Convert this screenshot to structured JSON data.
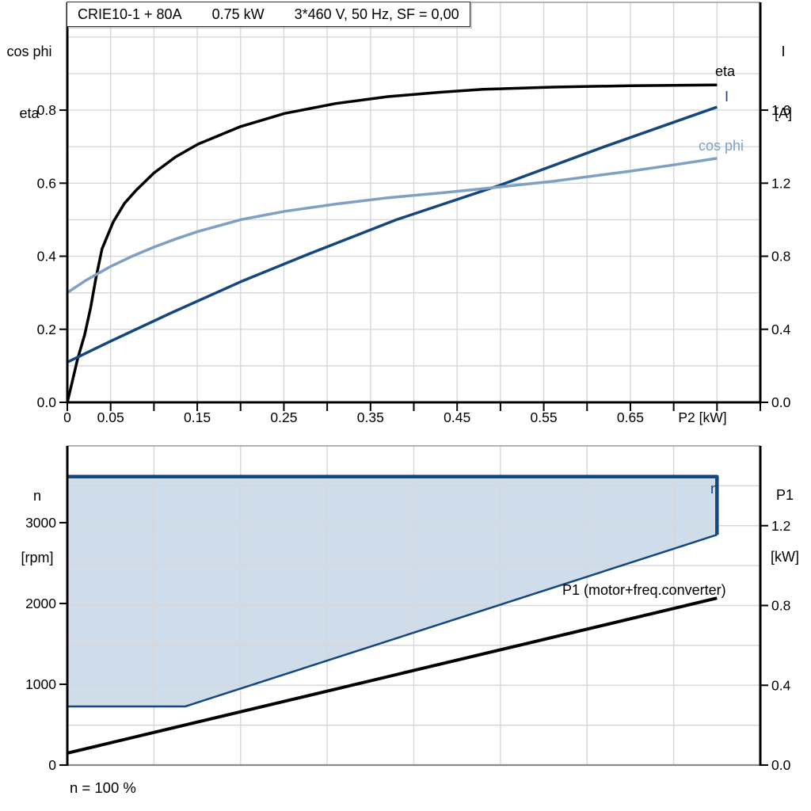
{
  "title_box": {
    "segments": [
      "CRIE10-1 + 80A",
      "0.75 kW",
      "3*460 V, 50 Hz, SF = 0,00"
    ]
  },
  "axis_corner_labels": {
    "top_left_line1": "cos phi",
    "top_left_line2": "eta",
    "top_right_line1": "I",
    "top_right_line2": "[A]",
    "bottom_left_line1": "n",
    "bottom_left_line2": "[rpm]",
    "bottom_right_line1": "P1",
    "bottom_right_line2": "[kW]"
  },
  "footnote": "n = 100 %",
  "colors": {
    "eta_black": "#000000",
    "current_dark_blue": "#14477E",
    "cos_phi_light_blue": "#7FA0C2",
    "region_fill": "#CFDCE9",
    "gridline_gray": "#D5D7DA",
    "border_gray": "#9B9B9B",
    "bottom_axis_gray": "#8A8A8A",
    "axis_black": "#000000",
    "background": "#FFFFFF"
  },
  "chart_data": [
    {
      "type": "line",
      "title": "CRIE10-1 + 80A  0.75 kW  3*460 V, 50 Hz, SF = 0,00",
      "x_axis": {
        "label": "P2 [kW]",
        "min": 0,
        "max": 0.8,
        "minor_tick_step": 0.05,
        "tick_values": [
          0,
          0.05,
          0.15,
          0.25,
          0.35,
          0.45,
          0.55,
          0.65
        ],
        "tick_labels": [
          "0",
          "0.05",
          "0.15",
          "0.25",
          "0.35",
          "0.45",
          "0.55",
          "0.65"
        ],
        "grid_step": 0.05
      },
      "y_left": {
        "label": "cos phi / eta",
        "min": 0,
        "max": 1.095,
        "tick_values": [
          0.0,
          0.2,
          0.4,
          0.6,
          0.8
        ],
        "tick_labels": [
          "0.0",
          "0.2",
          "0.4",
          "0.6",
          "0.8"
        ],
        "grid_step": 0.1
      },
      "y_right": {
        "label": "I [A]",
        "min": 0,
        "max": 2.19,
        "tick_values": [
          0.0,
          0.4,
          0.8,
          1.2,
          1.6
        ],
        "tick_labels": [
          "0.0",
          "0.4",
          "0.8",
          "1.2",
          "1.6"
        ]
      },
      "series": [
        {
          "name": "eta",
          "label": "eta",
          "axis": "left",
          "color": "#000000",
          "width": 3.5,
          "points": [
            [
              0,
              0
            ],
            [
              0.006,
              0.06
            ],
            [
              0.012,
              0.12
            ],
            [
              0.02,
              0.185
            ],
            [
              0.027,
              0.26
            ],
            [
              0.033,
              0.34
            ],
            [
              0.04,
              0.42
            ],
            [
              0.053,
              0.494
            ],
            [
              0.066,
              0.545
            ],
            [
              0.08,
              0.582
            ],
            [
              0.1,
              0.628
            ],
            [
              0.125,
              0.672
            ],
            [
              0.151,
              0.707
            ],
            [
              0.2,
              0.755
            ],
            [
              0.251,
              0.791
            ],
            [
              0.31,
              0.818
            ],
            [
              0.37,
              0.837
            ],
            [
              0.43,
              0.849
            ],
            [
              0.48,
              0.857
            ],
            [
              0.56,
              0.863
            ],
            [
              0.65,
              0.867
            ],
            [
              0.75,
              0.869
            ]
          ]
        },
        {
          "name": "I",
          "label": "I",
          "axis": "right",
          "color": "#14477E",
          "width": 3.5,
          "points": [
            [
              0,
              0.22
            ],
            [
              0.05,
              0.335
            ],
            [
              0.12,
              0.49
            ],
            [
              0.2,
              0.66
            ],
            [
              0.28,
              0.815
            ],
            [
              0.38,
              1.0
            ],
            [
              0.5,
              1.19
            ],
            [
              0.62,
              1.4
            ],
            [
              0.75,
              1.617
            ]
          ]
        },
        {
          "name": "cos phi",
          "label": "cos phi",
          "axis": "left",
          "color": "#7FA0C2",
          "width": 3.5,
          "points": [
            [
              0,
              0.3
            ],
            [
              0.02,
              0.332
            ],
            [
              0.05,
              0.372
            ],
            [
              0.075,
              0.4
            ],
            [
              0.1,
              0.425
            ],
            [
              0.125,
              0.447
            ],
            [
              0.151,
              0.468
            ],
            [
              0.2,
              0.5
            ],
            [
              0.251,
              0.523
            ],
            [
              0.31,
              0.543
            ],
            [
              0.37,
              0.56
            ],
            [
              0.43,
              0.573
            ],
            [
              0.48,
              0.585
            ],
            [
              0.56,
              0.605
            ],
            [
              0.65,
              0.633
            ],
            [
              0.7,
              0.65
            ],
            [
              0.75,
              0.668
            ]
          ]
        }
      ]
    },
    {
      "type": "line",
      "x_axis": {
        "min": 0,
        "max": 0.8,
        "grid_divisions": 8
      },
      "y_left": {
        "label": "n [rpm]",
        "min": 0,
        "max": 3950,
        "tick_values": [
          0,
          1000,
          2000,
          3000
        ],
        "tick_labels": [
          "0",
          "1000",
          "2000",
          "3000"
        ]
      },
      "y_right": {
        "label": "P1 [kW]",
        "min": 0,
        "max": 1.6,
        "tick_values": [
          0.0,
          0.4,
          0.8,
          1.2
        ],
        "tick_labels": [
          "0.0",
          "0.4",
          "0.8",
          "1.2"
        ],
        "grid_step": 0.2
      },
      "region": {
        "name": "speed-operating-range",
        "fill": "#CFDCE9",
        "upper_rpm": [
          [
            0,
            3570
          ],
          [
            0.75,
            3570
          ],
          [
            0.75,
            2850
          ]
        ],
        "lower_rpm": [
          [
            0,
            725
          ],
          [
            0.136,
            725
          ],
          [
            0.75,
            2850
          ]
        ]
      },
      "series": [
        {
          "name": "n-max",
          "label": "n",
          "axis": "left",
          "color": "#14477E",
          "width": 4.5,
          "points": [
            [
              0,
              3570
            ],
            [
              0.75,
              3570
            ],
            [
              0.75,
              2850
            ]
          ]
        },
        {
          "name": "n-min",
          "label": "",
          "axis": "left",
          "color": "#14477E",
          "width": 2.5,
          "points": [
            [
              0,
              725
            ],
            [
              0.136,
              725
            ],
            [
              0.75,
              2850
            ]
          ]
        },
        {
          "name": "P1",
          "label": "P1 (motor+freq.converter)",
          "axis": "right",
          "color": "#000000",
          "width": 4,
          "points": [
            [
              0,
              0.06
            ],
            [
              0.75,
              0.837
            ]
          ]
        }
      ],
      "footnote": "n = 100 %"
    }
  ]
}
